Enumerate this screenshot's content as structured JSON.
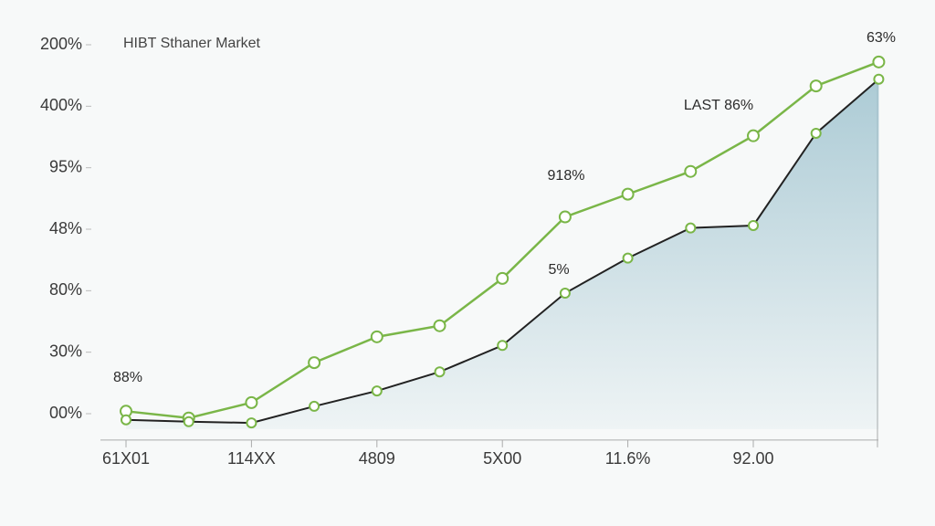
{
  "chart_data": {
    "type": "line",
    "title": "HIBT Sthaner Market",
    "categories": [
      "61X01",
      null,
      "114XX",
      null,
      "4809",
      null,
      "5X00",
      null,
      "11.6%",
      null,
      "92.00",
      null,
      null
    ],
    "series": [
      {
        "color": "#7ab648",
        "values": [
          0.04,
          -0.07,
          0.18,
          0.83,
          1.25,
          1.43,
          2.2,
          3.2,
          3.57,
          3.94,
          4.52,
          5.33,
          5.72
        ]
      },
      {
        "color": "#222222",
        "values": [
          -0.1,
          -0.13,
          -0.15,
          0.12,
          0.37,
          0.68,
          1.11,
          1.96,
          2.53,
          3.02,
          3.06,
          4.56,
          5.44
        ]
      }
    ],
    "ylim": [
      -0.25,
      6
    ],
    "yticks": [
      {
        "value": 0,
        "label": "00%"
      },
      {
        "value": 1,
        "label": "30%"
      },
      {
        "value": 2,
        "label": "80%"
      },
      {
        "value": 3,
        "label": "48%"
      },
      {
        "value": 4,
        "label": "95%"
      },
      {
        "value": 5,
        "label": "400%"
      },
      {
        "value": 6,
        "label": "200%"
      }
    ],
    "annotations": [
      "63%",
      "LAST 86%",
      "918%",
      "5%",
      "88%"
    ],
    "area_color": "#9fc3cf"
  }
}
